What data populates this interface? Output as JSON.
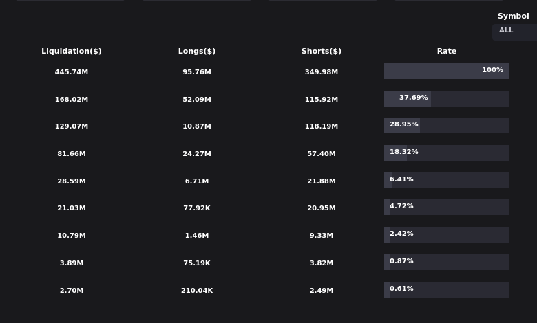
{
  "symbol": {
    "label": "Symbol",
    "selected": "ALL"
  },
  "table": {
    "headers": {
      "liquidation": "Liquidation($)",
      "longs": "Longs($)",
      "shorts": "Shorts($)",
      "rate": "Rate"
    },
    "rows": [
      {
        "liquidation": "445.74M",
        "longs": "95.76M",
        "shorts": "349.98M",
        "rate": "100%",
        "rate_value": 100
      },
      {
        "liquidation": "168.02M",
        "longs": "52.09M",
        "shorts": "115.92M",
        "rate": "37.69%",
        "rate_value": 37.69
      },
      {
        "liquidation": "129.07M",
        "longs": "10.87M",
        "shorts": "118.19M",
        "rate": "28.95%",
        "rate_value": 28.95
      },
      {
        "liquidation": "81.66M",
        "longs": "24.27M",
        "shorts": "57.40M",
        "rate": "18.32%",
        "rate_value": 18.32
      },
      {
        "liquidation": "28.59M",
        "longs": "6.71M",
        "shorts": "21.88M",
        "rate": "6.41%",
        "rate_value": 6.41
      },
      {
        "liquidation": "21.03M",
        "longs": "77.92K",
        "shorts": "20.95M",
        "rate": "4.72%",
        "rate_value": 4.72
      },
      {
        "liquidation": "10.79M",
        "longs": "1.46M",
        "shorts": "9.33M",
        "rate": "2.42%",
        "rate_value": 2.42
      },
      {
        "liquidation": "3.89M",
        "longs": "75.19K",
        "shorts": "3.82M",
        "rate": "0.87%",
        "rate_value": 0.87
      },
      {
        "liquidation": "2.70M",
        "longs": "210.04K",
        "shorts": "2.49M",
        "rate": "0.61%",
        "rate_value": 0.61
      }
    ]
  },
  "colors": {
    "background": "#19191c",
    "rate_track": "#2a2a33",
    "rate_fill": "#3b3c48"
  }
}
